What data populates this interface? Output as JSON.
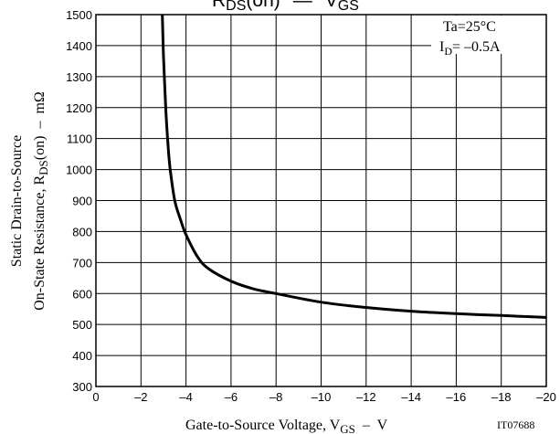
{
  "chart_data": {
    "type": "line",
    "title_parts": [
      "R",
      "DS",
      "(on)",
      "—",
      "V",
      "GS"
    ],
    "xlabel_parts": [
      "Gate-to-Source Voltage, V",
      "GS",
      "  –  V"
    ],
    "ylabel_line1": "Static Drain-to-Source",
    "ylabel_line2_parts": [
      "On-State Resistance, R",
      "DS",
      "(on)  –  mΩ"
    ],
    "xlim": [
      0,
      -20
    ],
    "ylim": [
      300,
      1500
    ],
    "x_ticks": [
      0,
      -2,
      -4,
      -6,
      -8,
      -10,
      -12,
      -14,
      -16,
      -18,
      -20
    ],
    "y_ticks": [
      300,
      400,
      500,
      600,
      700,
      800,
      900,
      1000,
      1100,
      1200,
      1300,
      1400,
      1500
    ],
    "x_tick_labels": [
      "0",
      "–2",
      "–4",
      "–6",
      "–8",
      "–10",
      "–12",
      "–14",
      "–16",
      "–18",
      "–20"
    ],
    "y_tick_labels": [
      "300",
      "400",
      "500",
      "600",
      "700",
      "800",
      "900",
      "1000",
      "1100",
      "1200",
      "1300",
      "1400",
      "1500"
    ],
    "annotation_line1": "Ta=25°C",
    "annotation_line2_parts": [
      "I",
      "D",
      "= –0.5A"
    ],
    "figure_code": "IT07688",
    "grid": true,
    "series": [
      {
        "x": [
          -2.95,
          -3.0,
          -3.1,
          -3.2,
          -3.3,
          -3.5,
          -3.75,
          -4.0,
          -4.5,
          -5.0,
          -6.0,
          -7.0,
          -8.0,
          -10.0,
          -12.0,
          -14.0,
          -16.0,
          -18.0,
          -20.0
        ],
        "values": [
          1500,
          1370,
          1200,
          1080,
          1000,
          900,
          840,
          790,
          720,
          680,
          640,
          615,
          600,
          572,
          555,
          543,
          535,
          529,
          523
        ]
      }
    ]
  }
}
